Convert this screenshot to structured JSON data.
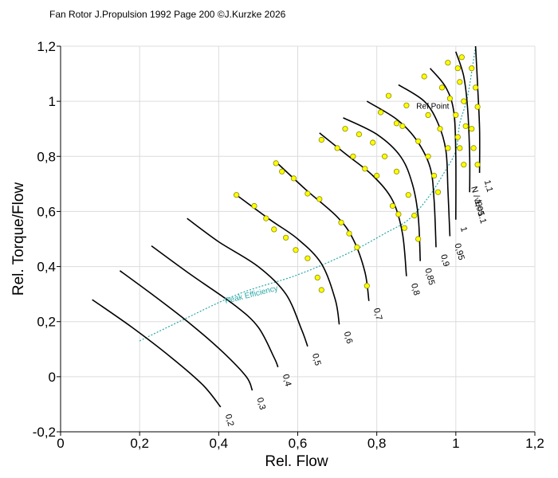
{
  "chart_data": {
    "type": "line",
    "title": "Fan Rotor J.Propulsion 1992 Page 200 ©J.Kurzke 2026",
    "xlabel": "Rel. Flow",
    "ylabel": "Rel. Torque/Flow",
    "xlim": [
      0,
      1.2
    ],
    "ylim": [
      -0.2,
      1.2
    ],
    "x_ticks": [
      "0",
      "0,2",
      "0,4",
      "0,6",
      "0,8",
      "1",
      "1,2"
    ],
    "y_ticks": [
      "-0,2",
      "0",
      "0,2",
      "0,4",
      "0,6",
      "0,8",
      "1",
      "1,2"
    ],
    "grid": true,
    "colors": {
      "speed_line": "#000000",
      "peak_line": "#2aa6a6",
      "marker_fill": "#ffff00",
      "marker_stroke": "#8a8a00"
    },
    "speed_param_label": "N /√θ=1.1",
    "series": [
      {
        "name": "0,2",
        "points": [
          [
            0.08,
            0.28
          ],
          [
            0.18,
            0.18
          ],
          [
            0.28,
            0.07
          ],
          [
            0.36,
            -0.03
          ],
          [
            0.405,
            -0.11
          ]
        ]
      },
      {
        "name": "0,3",
        "points": [
          [
            0.15,
            0.385
          ],
          [
            0.24,
            0.29
          ],
          [
            0.33,
            0.19
          ],
          [
            0.41,
            0.09
          ],
          [
            0.47,
            0.0
          ],
          [
            0.485,
            -0.05
          ]
        ]
      },
      {
        "name": "0,4",
        "points": [
          [
            0.23,
            0.475
          ],
          [
            0.33,
            0.37
          ],
          [
            0.44,
            0.26
          ],
          [
            0.5,
            0.18
          ],
          [
            0.54,
            0.07
          ],
          [
            0.55,
            0.035
          ]
        ]
      },
      {
        "name": "0,5",
        "points": [
          [
            0.32,
            0.575
          ],
          [
            0.4,
            0.49
          ],
          [
            0.5,
            0.4
          ],
          [
            0.57,
            0.3
          ],
          [
            0.61,
            0.17
          ],
          [
            0.625,
            0.11
          ]
        ]
      },
      {
        "name": "0,6",
        "points": [
          [
            0.44,
            0.665
          ],
          [
            0.53,
            0.57
          ],
          [
            0.6,
            0.5
          ],
          [
            0.66,
            0.41
          ],
          [
            0.695,
            0.28
          ],
          [
            0.705,
            0.19
          ]
        ]
      },
      {
        "name": "0,7",
        "points": [
          [
            0.545,
            0.78
          ],
          [
            0.62,
            0.68
          ],
          [
            0.7,
            0.58
          ],
          [
            0.74,
            0.5
          ],
          [
            0.77,
            0.38
          ],
          [
            0.78,
            0.275
          ]
        ]
      },
      {
        "name": "0,8",
        "points": [
          [
            0.655,
            0.885
          ],
          [
            0.72,
            0.81
          ],
          [
            0.79,
            0.73
          ],
          [
            0.84,
            0.64
          ],
          [
            0.865,
            0.52
          ],
          [
            0.875,
            0.365
          ]
        ]
      },
      {
        "name": "0,85",
        "points": [
          [
            0.715,
            0.94
          ],
          [
            0.8,
            0.88
          ],
          [
            0.86,
            0.8
          ],
          [
            0.89,
            0.7
          ],
          [
            0.905,
            0.58
          ],
          [
            0.91,
            0.42
          ]
        ]
      },
      {
        "name": "0,9",
        "points": [
          [
            0.775,
            1.0
          ],
          [
            0.85,
            0.935
          ],
          [
            0.9,
            0.86
          ],
          [
            0.935,
            0.76
          ],
          [
            0.945,
            0.64
          ],
          [
            0.95,
            0.47
          ]
        ]
      },
      {
        "name": "0,95",
        "points": [
          [
            0.855,
            1.06
          ],
          [
            0.92,
            1.0
          ],
          [
            0.955,
            0.92
          ],
          [
            0.975,
            0.82
          ],
          [
            0.98,
            0.68
          ],
          [
            0.985,
            0.51
          ]
        ]
      },
      {
        "name": "1",
        "points": [
          [
            0.935,
            1.12
          ],
          [
            0.975,
            1.05
          ],
          [
            0.995,
            0.96
          ],
          [
            1.0,
            0.8
          ],
          [
            1.0,
            0.57
          ]
        ]
      },
      {
        "name": "1,05",
        "points": [
          [
            1.0,
            1.18
          ],
          [
            1.02,
            1.09
          ],
          [
            1.03,
            0.97
          ],
          [
            1.035,
            0.8
          ],
          [
            1.035,
            0.67
          ]
        ]
      },
      {
        "name": "1,1",
        "points": [
          [
            1.05,
            1.2
          ],
          [
            1.055,
            1.06
          ],
          [
            1.06,
            0.9
          ],
          [
            1.06,
            0.74
          ]
        ]
      }
    ],
    "peak_efficiency": {
      "label": "Peak Efficiency",
      "points": [
        [
          0.2,
          0.13
        ],
        [
          0.3,
          0.2
        ],
        [
          0.45,
          0.3
        ],
        [
          0.6,
          0.37
        ],
        [
          0.73,
          0.45
        ],
        [
          0.82,
          0.52
        ],
        [
          0.88,
          0.57
        ],
        [
          0.93,
          0.65
        ],
        [
          0.97,
          0.74
        ],
        [
          1.0,
          0.82
        ],
        [
          1.01,
          0.92
        ],
        [
          1.03,
          1.02
        ],
        [
          1.05,
          1.2
        ]
      ]
    },
    "ref_point_label": "Ref Point",
    "ref_point": [
      0.9,
      0.985
    ],
    "measured_points": [
      [
        0.445,
        0.66
      ],
      [
        0.49,
        0.62
      ],
      [
        0.52,
        0.575
      ],
      [
        0.54,
        0.535
      ],
      [
        0.57,
        0.505
      ],
      [
        0.595,
        0.46
      ],
      [
        0.625,
        0.43
      ],
      [
        0.65,
        0.36
      ],
      [
        0.66,
        0.315
      ],
      [
        0.545,
        0.775
      ],
      [
        0.56,
        0.745
      ],
      [
        0.59,
        0.72
      ],
      [
        0.625,
        0.665
      ],
      [
        0.655,
        0.645
      ],
      [
        0.71,
        0.56
      ],
      [
        0.73,
        0.52
      ],
      [
        0.75,
        0.47
      ],
      [
        0.775,
        0.33
      ],
      [
        0.66,
        0.86
      ],
      [
        0.7,
        0.83
      ],
      [
        0.74,
        0.8
      ],
      [
        0.77,
        0.755
      ],
      [
        0.8,
        0.73
      ],
      [
        0.84,
        0.62
      ],
      [
        0.855,
        0.59
      ],
      [
        0.87,
        0.54
      ],
      [
        0.72,
        0.9
      ],
      [
        0.755,
        0.88
      ],
      [
        0.79,
        0.85
      ],
      [
        0.82,
        0.8
      ],
      [
        0.85,
        0.745
      ],
      [
        0.88,
        0.66
      ],
      [
        0.895,
        0.585
      ],
      [
        0.905,
        0.5
      ],
      [
        0.81,
        0.96
      ],
      [
        0.85,
        0.92
      ],
      [
        0.865,
        0.91
      ],
      [
        0.905,
        0.855
      ],
      [
        0.93,
        0.8
      ],
      [
        0.945,
        0.73
      ],
      [
        0.83,
        1.02
      ],
      [
        0.875,
        0.985
      ],
      [
        0.93,
        0.95
      ],
      [
        0.96,
        0.9
      ],
      [
        0.98,
        0.83
      ],
      [
        0.955,
        0.67
      ],
      [
        0.92,
        1.09
      ],
      [
        0.965,
        1.05
      ],
      [
        0.985,
        1.01
      ],
      [
        1.0,
        0.95
      ],
      [
        1.005,
        0.87
      ],
      [
        0.98,
        1.14
      ],
      [
        1.005,
        1.12
      ],
      [
        1.01,
        1.07
      ],
      [
        1.02,
        1.0
      ],
      [
        1.025,
        0.91
      ],
      [
        1.01,
        0.83
      ],
      [
        1.02,
        0.77
      ],
      [
        1.015,
        1.16
      ],
      [
        1.04,
        1.12
      ],
      [
        1.05,
        1.05
      ],
      [
        1.055,
        0.98
      ],
      [
        1.04,
        0.9
      ],
      [
        1.045,
        0.83
      ],
      [
        1.055,
        0.77
      ]
    ]
  }
}
